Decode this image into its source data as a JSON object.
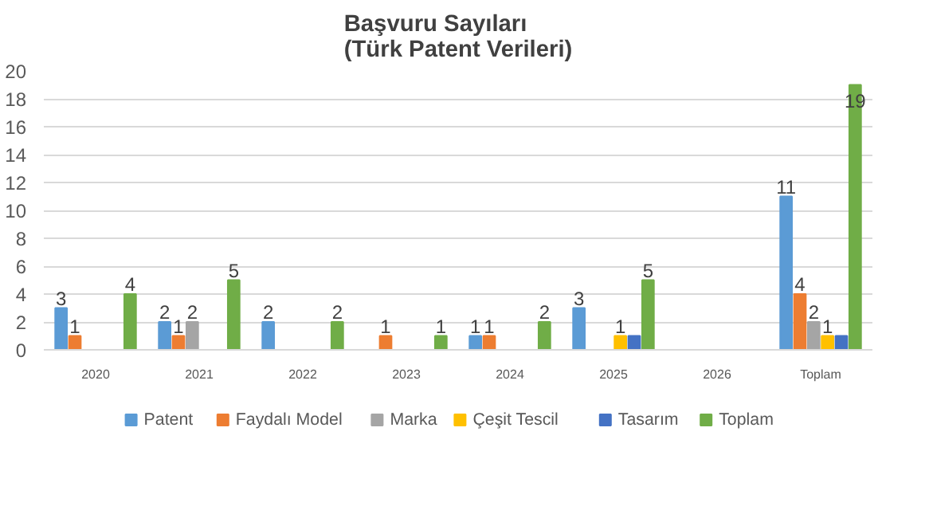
{
  "chart_data": {
    "type": "bar",
    "title": "Başvuru Sayıları\n(Türk Patent Verileri)",
    "categories": [
      "2020",
      "2021",
      "2022",
      "2023",
      "2024",
      "2025",
      "2026",
      "Toplam"
    ],
    "series": [
      {
        "name": "Patent",
        "color": "#5b9bd5",
        "values": [
          3,
          2,
          2,
          null,
          1,
          3,
          null,
          11
        ],
        "value_labels": [
          "3",
          "2",
          "2",
          null,
          "1",
          "3",
          null,
          "11"
        ]
      },
      {
        "name": "Faydalı Model",
        "color": "#ed7d31",
        "values": [
          1,
          1,
          null,
          1,
          1,
          null,
          null,
          4
        ],
        "value_labels": [
          "1",
          "1",
          null,
          "1",
          "1",
          null,
          null,
          "4"
        ]
      },
      {
        "name": "Marka",
        "color": "#a5a5a5",
        "values": [
          null,
          2,
          null,
          null,
          null,
          null,
          null,
          2
        ],
        "value_labels": [
          null,
          "2",
          null,
          null,
          null,
          null,
          null,
          "2"
        ]
      },
      {
        "name": "Çeşit Tescil",
        "color": "#ffc000",
        "values": [
          null,
          null,
          null,
          null,
          null,
          1,
          null,
          1
        ],
        "value_labels": [
          null,
          null,
          null,
          null,
          null,
          "1",
          null,
          "1"
        ]
      },
      {
        "name": "Tasarım",
        "color": "#4472c4",
        "values": [
          null,
          null,
          null,
          null,
          null,
          1,
          null,
          1
        ],
        "value_labels": [
          null,
          null,
          null,
          null,
          null,
          null,
          null,
          null
        ]
      },
      {
        "name": "Toplam",
        "color": "#70ad47",
        "values": [
          4,
          5,
          2,
          1,
          2,
          5,
          null,
          19
        ],
        "value_labels": [
          "4",
          "5",
          "2",
          "1",
          "2",
          "5",
          null,
          "19"
        ]
      }
    ],
    "ylim": [
      0,
      20
    ],
    "yticks": [
      0,
      2,
      4,
      6,
      8,
      10,
      12,
      14,
      16,
      18,
      20
    ],
    "grid": "y",
    "legend": "bottom"
  }
}
